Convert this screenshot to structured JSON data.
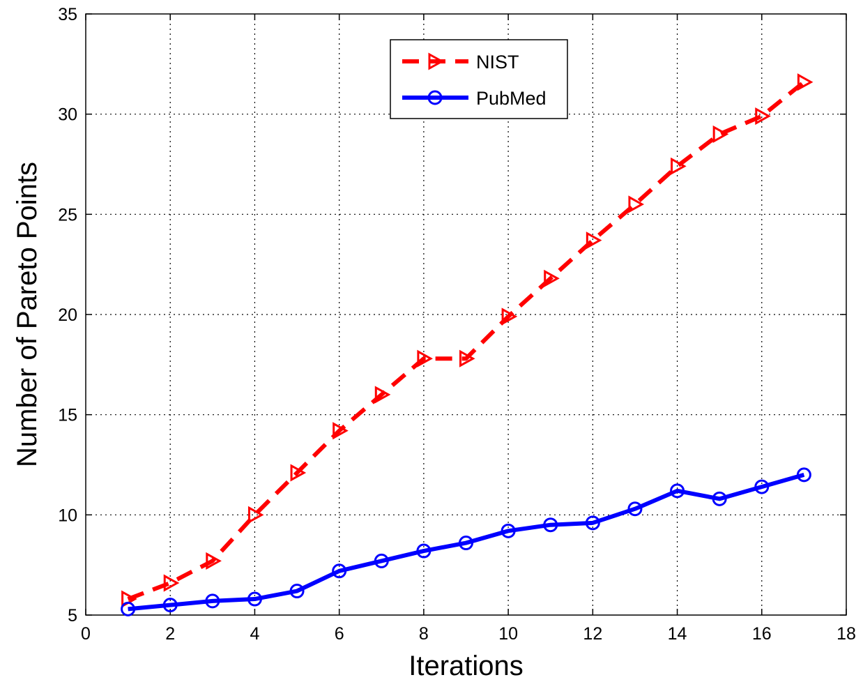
{
  "chart_data": {
    "type": "line",
    "title": "",
    "xlabel": "Iterations",
    "ylabel": "Number of Pareto Points",
    "xlim": [
      0,
      18
    ],
    "ylim": [
      5,
      35
    ],
    "xticks": [
      0,
      2,
      4,
      6,
      8,
      10,
      12,
      14,
      16,
      18
    ],
    "yticks": [
      5,
      10,
      15,
      20,
      25,
      30,
      35
    ],
    "grid": true,
    "legend_position": "top-center",
    "x": [
      1,
      2,
      3,
      4,
      5,
      6,
      7,
      8,
      9,
      10,
      11,
      12,
      13,
      14,
      15,
      16,
      17
    ],
    "series": [
      {
        "name": "NIST",
        "color": "#ff0000",
        "line_style": "dashed",
        "marker": "triangle-right",
        "values": [
          5.8,
          6.6,
          7.7,
          10.0,
          12.1,
          14.2,
          16.0,
          17.8,
          17.8,
          19.9,
          21.8,
          23.7,
          25.5,
          27.4,
          29.0,
          29.9,
          31.6
        ]
      },
      {
        "name": "PubMed",
        "color": "#0000ff",
        "line_style": "solid",
        "marker": "circle",
        "values": [
          5.3,
          5.5,
          5.7,
          5.8,
          6.2,
          7.2,
          7.7,
          8.2,
          8.6,
          9.2,
          9.5,
          9.6,
          10.3,
          11.2,
          10.8,
          11.4,
          12.0
        ]
      }
    ]
  }
}
